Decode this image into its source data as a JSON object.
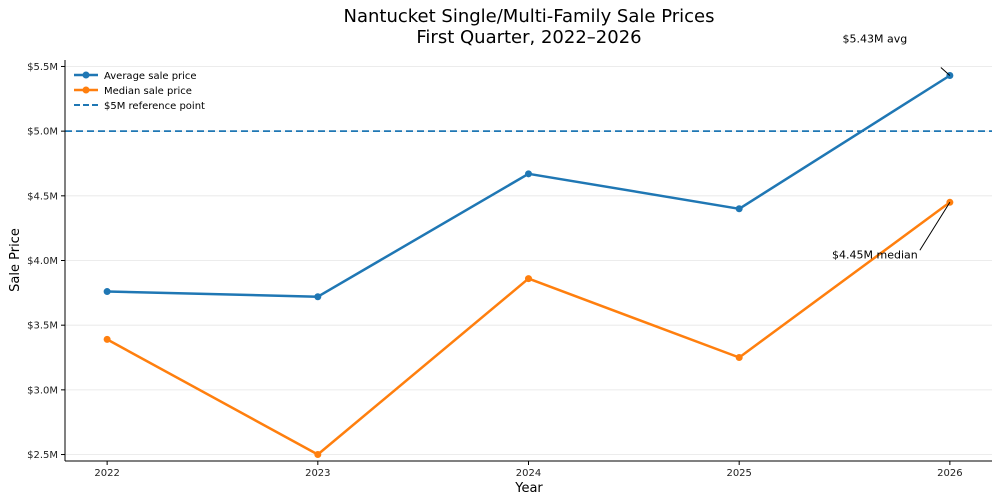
{
  "chart_data": {
    "type": "line",
    "title": "Nantucket Single/Multi-Family Sale Prices",
    "subtitle": "First Quarter, 2022–2026",
    "xlabel": "Year",
    "ylabel": "Sale Price",
    "x": [
      "2022",
      "2023",
      "2024",
      "2025",
      "2026"
    ],
    "xlim": [
      2021.8,
      2026.2
    ],
    "ylim": [
      2.45,
      5.55
    ],
    "y_ticks": [
      2.5,
      3.0,
      3.5,
      4.0,
      4.5,
      5.0,
      5.5
    ],
    "y_tick_labels": [
      "$2.5M",
      "$3.0M",
      "$3.5M",
      "$4.0M",
      "$4.5M",
      "$5.0M",
      "$5.5M"
    ],
    "grid": "horizontal",
    "legend_position": "top-left",
    "series": [
      {
        "name": "Average sale price",
        "color": "#1f77b4",
        "values": [
          3.76,
          3.72,
          4.67,
          4.4,
          5.43
        ]
      },
      {
        "name": "Median sale price",
        "color": "#ff7f0e",
        "values": [
          3.39,
          2.5,
          3.86,
          3.25,
          4.45
        ]
      }
    ],
    "reference_line": {
      "name": "$5M reference point",
      "value": 5.0,
      "color": "#1f77b4",
      "style": "dashed"
    },
    "annotations": [
      {
        "text": "$5.43M avg",
        "series": 0,
        "x": "2026",
        "y": 5.43
      },
      {
        "text": "$4.45M median",
        "series": 1,
        "x": "2026",
        "y": 4.45
      }
    ]
  }
}
